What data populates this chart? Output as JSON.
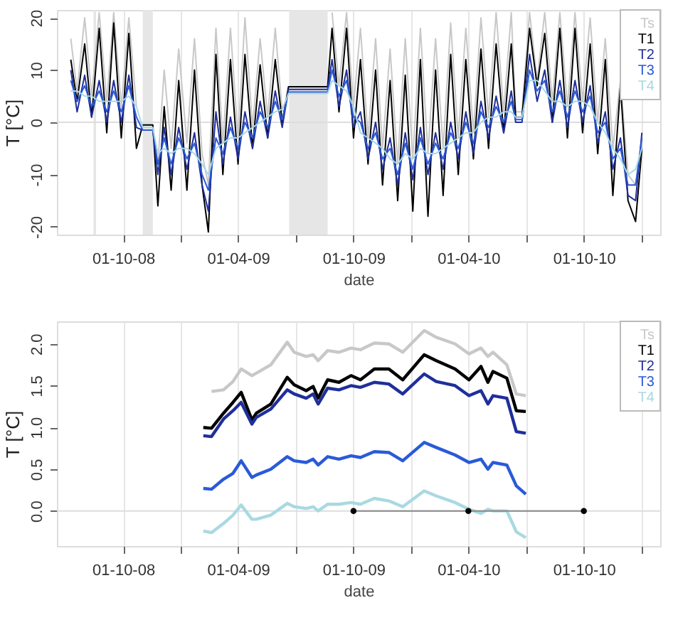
{
  "chart_data": [
    {
      "type": "line",
      "xlabel": "date",
      "ylabel": "T [°C]",
      "grid": "x",
      "legend": "top right",
      "xlim": [
        "2008-06-18",
        "2011-01-30"
      ],
      "ylim": [
        -21.5,
        21.5
      ],
      "xticks": [
        {
          "value": "2008-10-01",
          "label": "01-10-08"
        },
        {
          "value": "2009-01-01",
          "label": null
        },
        {
          "value": "2009-04-01",
          "label": "01-04-09"
        },
        {
          "value": "2009-07-01",
          "label": null
        },
        {
          "value": "2009-10-01",
          "label": "01-10-09"
        },
        {
          "value": "2010-01-01",
          "label": null
        },
        {
          "value": "2010-04-01",
          "label": "01-04-10"
        },
        {
          "value": "2010-07-01",
          "label": null
        },
        {
          "value": "2010-10-01",
          "label": "01-10-10"
        },
        {
          "value": "2011-01-01",
          "label": null
        }
      ],
      "yticks": [
        -20,
        -10,
        0,
        10,
        20
      ],
      "bands": [
        {
          "axis": "x",
          "from": "2008-08-15",
          "to": "2008-08-19",
          "color": "#e6e6e6"
        },
        {
          "axis": "x",
          "from": "2008-11-01",
          "to": "2008-11-17",
          "color": "#e6e6e6"
        },
        {
          "axis": "x",
          "from": "2009-06-21",
          "to": "2009-08-21",
          "color": "#e6e6e6"
        }
      ],
      "ref_lines": [
        {
          "axis": "y",
          "value": 0,
          "color": "#dddddd"
        }
      ],
      "x": [
        "2008-07-10",
        "2008-07-20",
        "2008-08-01",
        "2008-08-12",
        "2008-08-24",
        "2008-09-05",
        "2008-09-16",
        "2008-09-28",
        "2008-10-10",
        "2008-10-22",
        "2008-11-01",
        "2008-11-17",
        "2008-11-25",
        "2008-12-05",
        "2008-12-16",
        "2008-12-28",
        "2009-01-10",
        "2009-01-22",
        "2009-02-03",
        "2009-02-13",
        "2009-02-25",
        "2009-03-08",
        "2009-03-20",
        "2009-04-01",
        "2009-04-12",
        "2009-04-24",
        "2009-05-06",
        "2009-05-18",
        "2009-05-30",
        "2009-06-10",
        "2009-06-20",
        "2009-08-21",
        "2009-08-28",
        "2009-09-08",
        "2009-09-20",
        "2009-10-01",
        "2009-10-12",
        "2009-10-24",
        "2009-11-05",
        "2009-11-16",
        "2009-11-28",
        "2009-12-10",
        "2009-12-22",
        "2010-01-03",
        "2010-01-15",
        "2010-01-27",
        "2010-02-08",
        "2010-02-20",
        "2010-03-04",
        "2010-03-16",
        "2010-03-28",
        "2010-04-09",
        "2010-04-21",
        "2010-05-03",
        "2010-05-15",
        "2010-05-27",
        "2010-06-08",
        "2010-06-15",
        "2010-06-25",
        "2010-07-07",
        "2010-07-19",
        "2010-07-31",
        "2010-08-12",
        "2010-08-24",
        "2010-09-05",
        "2010-09-17",
        "2010-09-29",
        "2010-10-11",
        "2010-10-23",
        "2010-11-04",
        "2010-11-16",
        "2010-11-28",
        "2010-12-10",
        "2010-12-22",
        "2011-01-01"
      ],
      "series": [
        {
          "name": "Ts",
          "color": "#c8c8c8",
          "values": [
            16,
            6,
            20,
            5,
            21,
            4,
            21,
            3,
            20,
            3,
            null,
            null,
            -8,
            10,
            -5,
            14,
            -4,
            16,
            -6,
            -12,
            18,
            -4,
            18,
            -3,
            20,
            -1,
            16,
            1,
            18,
            2,
            null,
            null,
            21,
            7,
            21,
            3,
            18,
            -3,
            16,
            -5,
            14,
            -8,
            16,
            -7,
            18,
            -6,
            16,
            -5,
            19,
            -3,
            18,
            -2,
            20,
            1,
            21,
            2,
            21,
            2,
            2,
            21,
            8,
            21,
            4,
            21,
            3,
            21,
            4,
            20,
            0,
            16,
            -5,
            8,
            -10,
            -12,
            -4
          ]
        },
        {
          "name": "T1",
          "color": "#000000",
          "values": [
            12,
            4,
            15,
            1,
            18,
            -2,
            19,
            -3,
            17,
            -5,
            -0.5,
            -0.5,
            -16,
            3,
            -13,
            8,
            -13,
            10,
            -12,
            -21,
            13,
            -10,
            12,
            -8,
            13,
            -5,
            11,
            -3,
            12,
            0,
            6.8,
            6.8,
            18,
            2,
            18,
            -3,
            12,
            -8,
            10,
            -12,
            8,
            -15,
            9,
            -17,
            12,
            -18,
            10,
            -14,
            13,
            -10,
            12,
            -7,
            14,
            -5,
            15,
            -2,
            15,
            1,
            1,
            18,
            7,
            17,
            0,
            18,
            -3,
            18,
            -2,
            15,
            -6,
            12,
            -14,
            7,
            -15,
            -19,
            -5
          ]
        },
        {
          "name": "T2",
          "color": "#1f2f9a",
          "values": [
            10,
            2,
            9,
            1,
            8,
            0,
            8,
            0,
            9,
            -1,
            -1.5,
            -1.5,
            -10,
            -1,
            -10,
            -1,
            -9,
            -2,
            -12,
            -17,
            2,
            -8,
            1,
            -7,
            2,
            -5,
            4,
            -3,
            6,
            -1,
            6.3,
            6.3,
            12,
            3,
            10,
            -1,
            2,
            -7,
            0,
            -9,
            -3,
            -12,
            -2,
            -11,
            -1,
            -10,
            -2,
            -9,
            0,
            -7,
            2,
            -6,
            4,
            -3,
            5,
            -2,
            6,
            0,
            0,
            13,
            4,
            10,
            0,
            8,
            -1,
            8,
            0,
            7,
            -4,
            2,
            -9,
            -3,
            -14,
            -15,
            -2
          ]
        },
        {
          "name": "T3",
          "color": "#2a5ad8",
          "values": [
            8,
            4,
            7,
            3,
            6,
            2,
            6,
            2,
            7,
            1,
            -1.5,
            -1.5,
            -8,
            -3,
            -8,
            -3,
            -7,
            -4,
            -10,
            -13,
            -3,
            -6,
            -1,
            -5,
            0,
            -3,
            2,
            -1,
            4,
            0.5,
            5.8,
            5.8,
            10,
            5,
            8,
            1,
            0,
            -5,
            -2,
            -7,
            -5,
            -10,
            -4,
            -9,
            -3,
            -8,
            -4,
            -7,
            -2,
            -5,
            0,
            -4,
            2,
            -1,
            3,
            0,
            4,
            0.5,
            0.5,
            10,
            6,
            8,
            2,
            6,
            1,
            6,
            2,
            5,
            -2,
            0,
            -7,
            -5,
            -12,
            -12,
            -3
          ]
        },
        {
          "name": "T4",
          "color": "#a9d9e2",
          "values": [
            6,
            6,
            5,
            5,
            4,
            4,
            4,
            4,
            5,
            3,
            -1,
            -1,
            -6,
            -5,
            -6,
            -5,
            -5,
            -6,
            -8,
            -10,
            -5,
            -4,
            -3,
            -3,
            -2,
            -1,
            0,
            1,
            2,
            2.5,
            5.5,
            5.5,
            8,
            7,
            6,
            3,
            -2,
            -3,
            -4,
            -5,
            -7,
            -8,
            -6,
            -7,
            -5,
            -6,
            -6,
            -5,
            -4,
            -3,
            -2,
            -2,
            0,
            1,
            1,
            2,
            2,
            1,
            1,
            8,
            8,
            6,
            4,
            4,
            3,
            4,
            4,
            3,
            0,
            -2,
            -5,
            -7,
            -10,
            -9,
            -5
          ]
        }
      ]
    },
    {
      "type": "line",
      "xlabel": "date",
      "ylabel": "T [°C]",
      "grid": "x",
      "legend": "top right",
      "xlim": [
        "2008-06-18",
        "2011-01-30"
      ],
      "ylim": [
        -0.42,
        2.27
      ],
      "xticks": [
        {
          "value": "2008-10-01",
          "label": "01-10-08"
        },
        {
          "value": "2009-01-01",
          "label": null
        },
        {
          "value": "2009-04-01",
          "label": "01-04-09"
        },
        {
          "value": "2009-07-01",
          "label": null
        },
        {
          "value": "2009-10-01",
          "label": "01-10-09"
        },
        {
          "value": "2010-01-01",
          "label": null
        },
        {
          "value": "2010-04-01",
          "label": "01-04-10"
        },
        {
          "value": "2010-07-01",
          "label": null
        },
        {
          "value": "2010-10-01",
          "label": "01-10-10"
        },
        {
          "value": "2011-01-01",
          "label": null
        }
      ],
      "yticks": [
        {
          "value": 0,
          "label": "0.0"
        },
        {
          "value": 0.5,
          "label": "0.5"
        },
        {
          "value": 1,
          "label": "1.0"
        },
        {
          "value": 1.5,
          "label": "1.5"
        },
        {
          "value": 2,
          "label": "2.0"
        }
      ],
      "ref_lines": [
        {
          "axis": "y",
          "value": 0,
          "color": "#dddddd"
        }
      ],
      "x": [
        "2009-02-05",
        "2009-02-18",
        "2009-03-09",
        "2009-03-24",
        "2009-04-06",
        "2009-04-23",
        "2009-04-30",
        "2009-05-23",
        "2009-06-18",
        "2009-06-29",
        "2009-07-18",
        "2009-07-29",
        "2009-08-06",
        "2009-08-21",
        "2009-09-08",
        "2009-09-27",
        "2009-10-12",
        "2009-11-03",
        "2009-11-26",
        "2009-12-18",
        "2010-01-21",
        "2010-02-09",
        "2010-03-11",
        "2010-04-02",
        "2010-04-21",
        "2010-05-02",
        "2010-05-10",
        "2010-06-01",
        "2010-06-16",
        "2010-07-01"
      ],
      "series": [
        {
          "name": "Ts",
          "color": "#c8c8c8",
          "values": [
            null,
            1.43,
            1.45,
            1.55,
            1.7,
            1.62,
            1.65,
            1.75,
            2.02,
            1.9,
            1.85,
            1.87,
            1.8,
            1.92,
            1.9,
            1.95,
            1.93,
            2.01,
            2.0,
            1.9,
            2.16,
            2.08,
            2.0,
            1.88,
            1.95,
            1.85,
            1.9,
            1.75,
            1.4,
            1.38
          ]
        },
        {
          "name": "T1",
          "color": "#000000",
          "values": [
            1.0,
            0.99,
            1.17,
            1.3,
            1.42,
            1.09,
            1.17,
            1.28,
            1.6,
            1.51,
            1.44,
            1.49,
            1.35,
            1.57,
            1.54,
            1.62,
            1.57,
            1.7,
            1.7,
            1.57,
            1.87,
            1.8,
            1.7,
            1.57,
            1.73,
            1.54,
            1.67,
            1.59,
            1.2,
            1.19
          ]
        },
        {
          "name": "T2",
          "color": "#1f2f9a",
          "values": [
            0.9,
            0.89,
            1.1,
            1.2,
            1.3,
            1.04,
            1.12,
            1.22,
            1.45,
            1.4,
            1.35,
            1.4,
            1.28,
            1.47,
            1.45,
            1.5,
            1.48,
            1.54,
            1.52,
            1.4,
            1.64,
            1.55,
            1.5,
            1.38,
            1.44,
            1.28,
            1.38,
            1.35,
            0.95,
            0.93
          ]
        },
        {
          "name": "T3",
          "color": "#2a5ad8",
          "values": [
            0.27,
            0.26,
            0.38,
            0.45,
            0.6,
            0.4,
            0.43,
            0.5,
            0.65,
            0.6,
            0.58,
            0.62,
            0.55,
            0.65,
            0.62,
            0.66,
            0.64,
            0.71,
            0.7,
            0.6,
            0.82,
            0.76,
            0.67,
            0.58,
            0.62,
            0.5,
            0.58,
            0.55,
            0.3,
            0.2
          ]
        },
        {
          "name": "T4",
          "color": "#a9d9e2",
          "values": [
            -0.24,
            -0.26,
            -0.15,
            -0.05,
            0.07,
            -0.1,
            -0.1,
            -0.05,
            0.09,
            0.05,
            0.03,
            0.05,
            0.0,
            0.08,
            0.08,
            0.1,
            0.08,
            0.15,
            0.12,
            0.05,
            0.24,
            0.18,
            0.1,
            0.02,
            -0.03,
            0.02,
            0.0,
            0.0,
            -0.25,
            -0.32
          ]
        },
        {
          "type": "line",
          "color": "#888888",
          "x": [
            "2009-10-01",
            "2010-04-01",
            "2010-10-01"
          ],
          "values": [
            0,
            0,
            0
          ]
        },
        {
          "type": "scatter",
          "color": "#000000",
          "x": [
            "2009-10-01",
            "2010-04-01",
            "2010-10-01"
          ],
          "values": [
            0,
            0,
            0
          ]
        }
      ]
    }
  ]
}
